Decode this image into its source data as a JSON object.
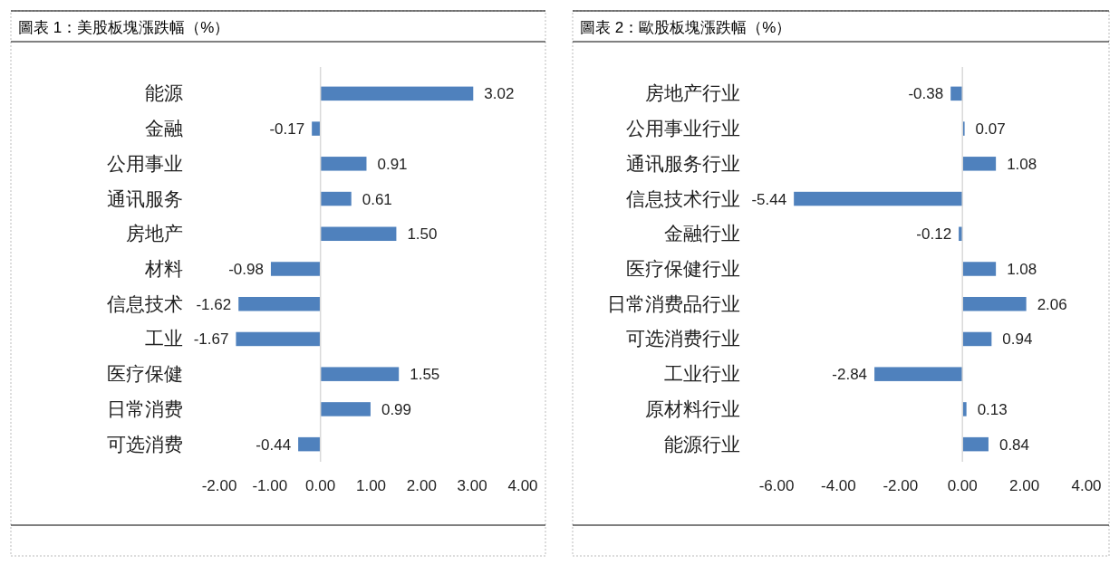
{
  "chart_data": [
    {
      "type": "bar",
      "orientation": "horizontal",
      "title": "圖表 1：美股板塊漲跌幅（%）",
      "categories": [
        "能源",
        "金融",
        "公用事业",
        "通讯服务",
        "房地产",
        "材料",
        "信息技术",
        "工业",
        "医疗保健",
        "日常消费",
        "可选消费"
      ],
      "values": [
        3.02,
        -0.17,
        0.91,
        0.61,
        1.5,
        -0.98,
        -1.62,
        -1.67,
        1.55,
        0.99,
        -0.44
      ],
      "value_labels": [
        "3.02",
        "-0.17",
        "0.91",
        "0.61",
        "1.50",
        "-0.98",
        "-1.62",
        "-1.67",
        "1.55",
        "0.99",
        "-0.44"
      ],
      "color": "#4f81bd",
      "xlim": [
        -2,
        4
      ],
      "xticks": [
        {
          "value": -2,
          "label": "-2.00"
        },
        {
          "value": -1,
          "label": "-1.00"
        },
        {
          "value": 0,
          "label": "0.00"
        },
        {
          "value": 1,
          "label": "1.00"
        },
        {
          "value": 2,
          "label": "2.00"
        },
        {
          "value": 3,
          "label": "3.00"
        },
        {
          "value": 4,
          "label": "4.00"
        }
      ]
    },
    {
      "type": "bar",
      "orientation": "horizontal",
      "title": "圖表 2：歐股板塊漲跌幅（%）",
      "categories": [
        "房地产行业",
        "公用事业行业",
        "通讯服务行业",
        "信息技术行业",
        "金融行业",
        "医疗保健行业",
        "日常消费品行业",
        "可选消费行业",
        "工业行业",
        "原材料行业",
        "能源行业"
      ],
      "values": [
        -0.38,
        0.07,
        1.08,
        -5.44,
        -0.12,
        1.08,
        2.06,
        0.94,
        -2.84,
        0.13,
        0.84
      ],
      "value_labels": [
        "-0.38",
        "0.07",
        "1.08",
        "-5.44",
        "-0.12",
        "1.08",
        "2.06",
        "0.94",
        "-2.84",
        "0.13",
        "0.84"
      ],
      "color": "#4f81bd",
      "xlim": [
        -6,
        4
      ],
      "xticks": [
        {
          "value": -6,
          "label": "-6.00"
        },
        {
          "value": -4,
          "label": "-4.00"
        },
        {
          "value": -2,
          "label": "-2.00"
        },
        {
          "value": 0,
          "label": "0.00"
        },
        {
          "value": 2,
          "label": "2.00"
        },
        {
          "value": 4,
          "label": "4.00"
        }
      ]
    }
  ]
}
